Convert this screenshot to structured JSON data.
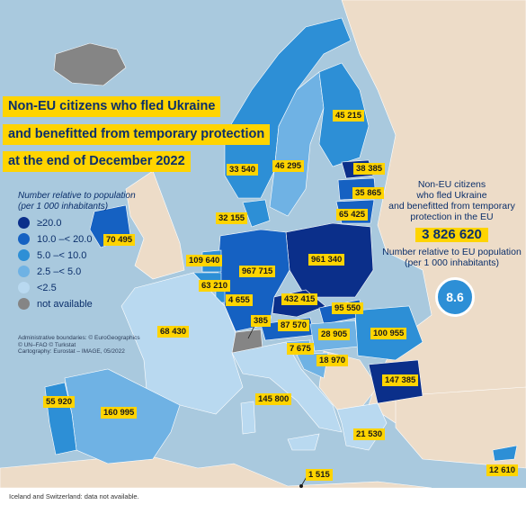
{
  "title": {
    "line1": "Non-EU citizens who fled Ukraine",
    "line2": "and benefitted from temporary protection",
    "line3": "at the end of December 2022"
  },
  "legend": {
    "heading_line1": "Number relative to population",
    "heading_line2": "(per 1 000 inhabitants)",
    "classes": [
      {
        "label": "≥20.0",
        "color": "#0b2f8a"
      },
      {
        "label": "10.0 –< 20.0",
        "color": "#1561c2"
      },
      {
        "label": "5.0 –< 10.0",
        "color": "#2d8fd6"
      },
      {
        "label": "2.5 –< 5.0",
        "color": "#6fb2e4"
      },
      {
        "label": "<2.5",
        "color": "#b9d9f0"
      },
      {
        "label": "not available",
        "color": "#858585"
      }
    ]
  },
  "credits": {
    "line1": "Administrative boundaries: © EuroGeographics",
    "line2": "© UN–FAO © Turkstat",
    "line3": "Cartography: Eurostat – IMAGE, 05/2022"
  },
  "summary": {
    "line1": "Non-EU citizens",
    "line2": "who fled Ukraine",
    "line3": "and benefitted from temporary",
    "line4": "protection in the EU",
    "total": "3 826 620",
    "rel_line1": "Number relative to EU population",
    "rel_line2": "(per 1 000 inhabitants)",
    "rate": "8.6"
  },
  "regions": {
    "finland": "45 215",
    "sweden": "46 295",
    "norway": "33 540",
    "estonia": "38 385",
    "latvia": "35 865",
    "lithuania": "65 425",
    "denmark": "32 155",
    "ireland": "70 495",
    "netherlands": "109 640",
    "germany": "967 715",
    "poland": "961 340",
    "belgium": "63 210",
    "luxembourg": "4 655",
    "czechia": "432 415",
    "slovakia": "95 550",
    "france": "68 430",
    "liechtenstein": "385",
    "austria": "87 570",
    "hungary": "28 905",
    "romania": "100 955",
    "slovenia": "7 675",
    "croatia": "18 970",
    "bulgaria": "147 385",
    "portugal": "55 920",
    "spain": "160 995",
    "italy": "145 800",
    "greece": "21 530",
    "malta": "1 515",
    "cyprus": "12 610"
  },
  "footer": "Iceland and Switzerland: data not available."
}
